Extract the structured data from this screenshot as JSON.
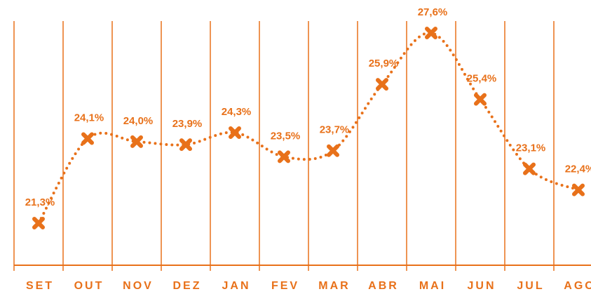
{
  "chart_data": {
    "type": "line",
    "categories": [
      "SET",
      "OUT",
      "NOV",
      "DEZ",
      "JAN",
      "FEV",
      "MAR",
      "ABR",
      "MAI",
      "JUN",
      "JUL",
      "AGO"
    ],
    "values": [
      21.3,
      24.1,
      24.0,
      23.9,
      24.3,
      23.5,
      23.7,
      25.9,
      27.6,
      25.4,
      23.1,
      22.4
    ],
    "value_labels": [
      "21,3%",
      "24,1%",
      "24,0%",
      "23,9%",
      "24,3%",
      "23,5%",
      "23,7%",
      "25,9%",
      "27,6%",
      "25,4%",
      "23,1%",
      "22,4%"
    ],
    "color": "#e8711a"
  }
}
